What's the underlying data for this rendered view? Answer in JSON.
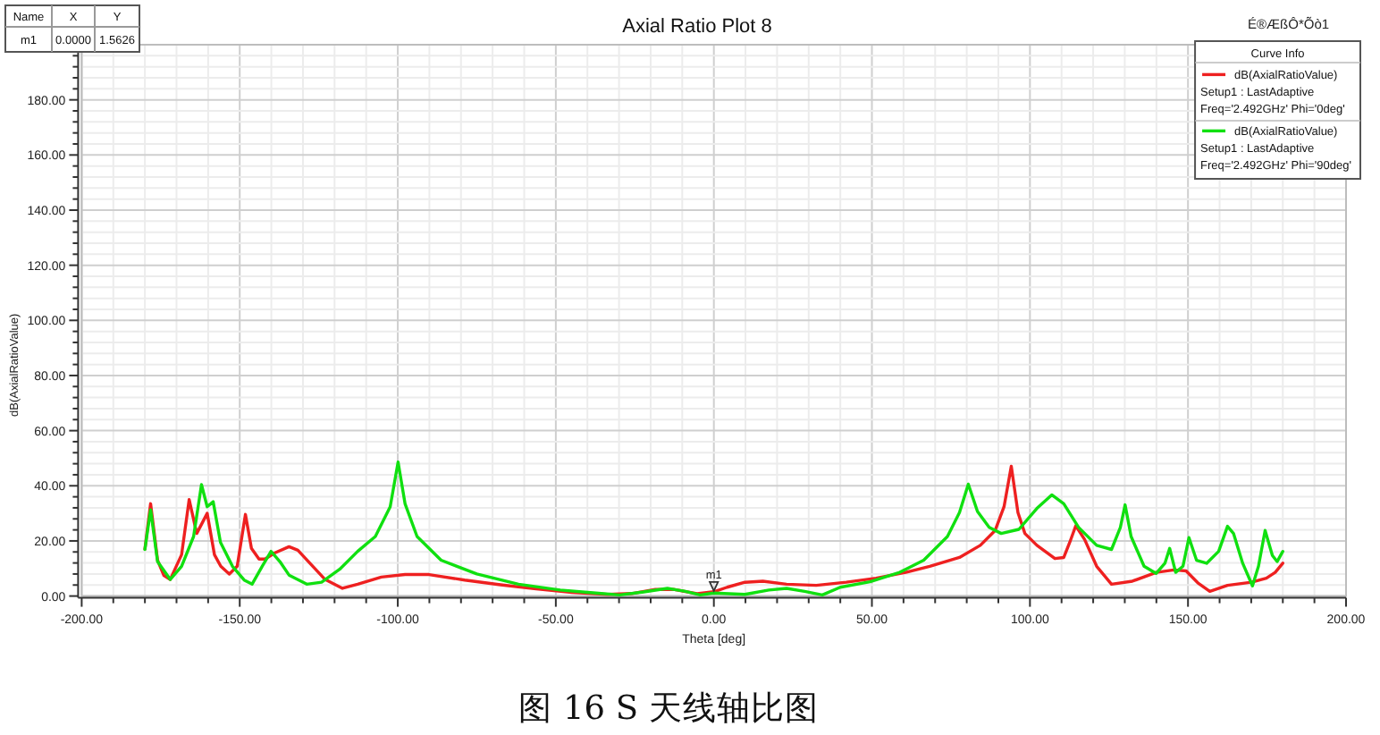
{
  "chart_data": {
    "type": "line",
    "title": "Axial Ratio Plot 8",
    "xlabel": "Theta [deg]",
    "ylabel": "dB(AxialRatioValue)",
    "legend_title": "Curve Info",
    "legend": "top right",
    "grid": true,
    "xlim": [
      -200,
      200
    ],
    "xticks": [
      {
        "value": -200,
        "label": "-200.00"
      },
      {
        "value": -150,
        "label": "-150.00"
      },
      {
        "value": -100,
        "label": "-100.00"
      },
      {
        "value": -50,
        "label": "-50.00"
      },
      {
        "value": 0,
        "label": "0.00"
      },
      {
        "value": 50,
        "label": "50.00"
      },
      {
        "value": 100,
        "label": "100.00"
      },
      {
        "value": 150,
        "label": "150.00"
      },
      {
        "value": 200,
        "label": "200.00"
      }
    ],
    "ylim": [
      0,
      200
    ],
    "yticks": [
      {
        "value": 0,
        "label": "0.00"
      },
      {
        "value": 20,
        "label": "20.00"
      },
      {
        "value": 40,
        "label": "40.00"
      },
      {
        "value": 60,
        "label": "60.00"
      },
      {
        "value": 80,
        "label": "80.00"
      },
      {
        "value": 100,
        "label": "100.00"
      },
      {
        "value": 120,
        "label": "120.00"
      },
      {
        "value": 140,
        "label": "140.00"
      },
      {
        "value": 160,
        "label": "160.00"
      },
      {
        "value": 180,
        "label": "180.00"
      }
    ],
    "series": [
      {
        "name": "dB(AxialRatioValue)\nSetup1 : LastAdaptive\nFreq='2.492GHz' Phi='0deg'",
        "color": "#ee2020",
        "x": [
          -180,
          -178.2,
          -176,
          -174,
          -172,
          -168.4,
          -166,
          -163.6,
          -160.3,
          -158,
          -156,
          -153.3,
          -150.8,
          -148.2,
          -146.3,
          -143.9,
          -142,
          -139,
          -134.4,
          -131.6,
          -127.8,
          -123,
          -117.5,
          -112.7,
          -105.2,
          -97.7,
          -90.1,
          -78.8,
          -67.5,
          -56.2,
          -44.9,
          -33.6,
          -26,
          -18.5,
          -12.8,
          -5.3,
          0,
          4.2,
          9.8,
          15.5,
          23,
          32.4,
          41.9,
          51.3,
          60.7,
          68.3,
          77.7,
          84.3,
          89,
          91.8,
          94.1,
          96.2,
          98.4,
          102.2,
          107.9,
          110.7,
          112.6,
          114.5,
          117.3,
          121.1,
          125.8,
          132.4,
          140,
          145.6,
          149.4,
          153.1,
          156.9,
          162.5,
          170.1,
          174.8,
          177.6,
          180
        ],
        "values": [
          17,
          33.5,
          13,
          7.5,
          6,
          15,
          35,
          22.7,
          30,
          15,
          10.8,
          8,
          10.8,
          29.6,
          17.3,
          13.4,
          13.4,
          15.6,
          17.9,
          16.6,
          11.9,
          6,
          2.8,
          4.3,
          6.9,
          7.8,
          7.8,
          5.8,
          4.1,
          2.6,
          1.3,
          0.6,
          0.9,
          2.4,
          2.4,
          0.9,
          1.5626,
          3.2,
          5,
          5.4,
          4.3,
          3.9,
          5,
          6.5,
          8.6,
          10.8,
          14,
          18.4,
          23.8,
          32.4,
          47.1,
          30.3,
          22.7,
          18.4,
          13.6,
          14,
          19.5,
          25.5,
          20.5,
          10.8,
          4.3,
          5.4,
          8.6,
          9.5,
          9.1,
          4.8,
          1.7,
          3.9,
          5,
          6.5,
          8.6,
          11.9
        ]
      },
      {
        "name": "dB(AxialRatioValue)\nSetup1 : LastAdaptive\nFreq='2.492GHz' Phi='90deg'",
        "color": "#10e010",
        "x": [
          -180,
          -178.2,
          -176,
          -172,
          -168.4,
          -164.6,
          -162.1,
          -160.3,
          -158.4,
          -156.1,
          -152.3,
          -148.6,
          -146.1,
          -142.9,
          -140.1,
          -137.3,
          -134.4,
          -128.8,
          -124.1,
          -118.4,
          -112.7,
          -107.1,
          -102.4,
          -99.9,
          -97.7,
          -93.9,
          -86.3,
          -75,
          -61.8,
          -48.6,
          -37.3,
          -29.8,
          -22.2,
          -14.7,
          -9,
          -4.3,
          0,
          9.8,
          17.4,
          23,
          28.7,
          34.3,
          40,
          49.4,
          58.8,
          66.4,
          73.9,
          77.7,
          80.5,
          83.4,
          87.1,
          90.9,
          96.5,
          102.2,
          106.9,
          110.7,
          115.4,
          121.1,
          125.8,
          128.6,
          130.1,
          132,
          136.1,
          139.9,
          142.7,
          144.2,
          146.1,
          148.4,
          150.3,
          152.7,
          155.9,
          159.7,
          162.5,
          164.4,
          167.3,
          170.4,
          172.3,
          174.4,
          176.7,
          178.2,
          180
        ],
        "values": [
          16.9,
          31.3,
          12.5,
          6,
          10.8,
          21.6,
          40.4,
          32.4,
          34.2,
          19.5,
          10.8,
          5.8,
          4.3,
          10.8,
          16.2,
          12.5,
          7.6,
          4.3,
          5,
          9.7,
          16.2,
          21.6,
          32.4,
          48.6,
          33.5,
          21.6,
          13,
          8,
          4.3,
          2.2,
          1.1,
          0.4,
          1.5,
          2.8,
          1.7,
          0.4,
          1.1,
          0.6,
          2.2,
          2.8,
          1.7,
          0.4,
          3.2,
          5.2,
          8.6,
          13,
          21.6,
          30.3,
          40.6,
          30.7,
          24.9,
          22.7,
          24.2,
          31.8,
          36.7,
          33.5,
          24.9,
          18.4,
          16.9,
          24.9,
          33.1,
          21.6,
          10.8,
          8.2,
          11.9,
          17.3,
          8.6,
          10.8,
          21.2,
          13,
          11.9,
          16.2,
          25.3,
          22.7,
          11.9,
          3.7,
          10.8,
          23.8,
          14.7,
          12.5,
          16.2
        ]
      }
    ],
    "annotations": [
      "Name",
      "X",
      "Y",
      "m1",
      "0.0000",
      "1.5626",
      "É®ÆßÔ*Õò1",
      {
        "text": "m1",
        "x": 0,
        "y": 1.5626
      },
      "图 16 S 天线轴比图"
    ]
  }
}
